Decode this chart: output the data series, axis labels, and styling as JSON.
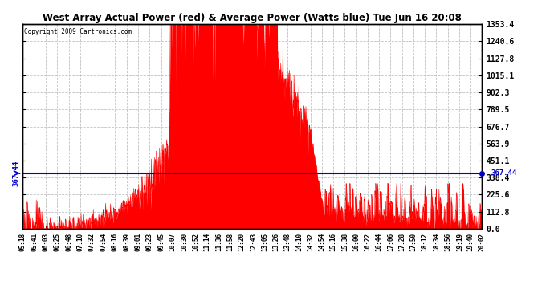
{
  "title": "West Array Actual Power (red) & Average Power (Watts blue) Tue Jun 16 20:08",
  "copyright": "Copyright 2009 Cartronics.com",
  "avg_power": 367.44,
  "y_max": 1353.4,
  "y_min": 0.0,
  "y_ticks": [
    0.0,
    112.8,
    225.6,
    338.4,
    451.1,
    563.9,
    676.7,
    789.5,
    902.3,
    1015.1,
    1127.8,
    1240.6,
    1353.4
  ],
  "bg_color": "#ffffff",
  "fill_color": "#ff0000",
  "line_color": "#0000cc",
  "grid_color": "#bbbbbb",
  "x_labels": [
    "05:18",
    "05:41",
    "06:03",
    "06:25",
    "06:48",
    "07:10",
    "07:32",
    "07:54",
    "08:16",
    "08:39",
    "09:01",
    "09:23",
    "09:45",
    "10:07",
    "10:30",
    "10:52",
    "11:14",
    "11:36",
    "11:58",
    "12:20",
    "12:43",
    "13:05",
    "13:26",
    "13:48",
    "14:10",
    "14:32",
    "14:54",
    "15:16",
    "15:38",
    "16:00",
    "16:22",
    "16:44",
    "17:06",
    "17:28",
    "17:50",
    "18:12",
    "18:34",
    "18:56",
    "19:19",
    "19:40",
    "20:02"
  ],
  "figsize": [
    6.9,
    3.75
  ],
  "dpi": 100
}
